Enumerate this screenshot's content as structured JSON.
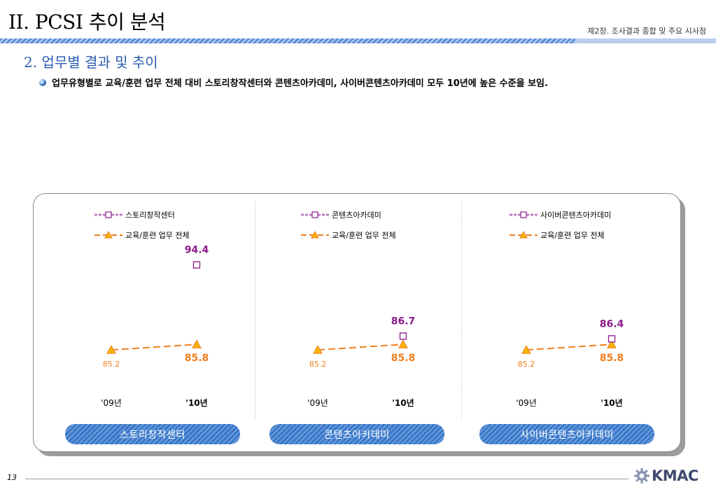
{
  "header": {
    "title": "II. PCSI 추이 분석",
    "chapter": "제2장. 조사결과 종합 및 주요 시사점"
  },
  "section": {
    "title": "2. 업무별 결과 및 추이",
    "bullet": "업무유형별로 교육/훈련 업무 전체 대비 스토리창작센터와 콘텐츠아카데미, 사이버콘텐츠아카데미 모두 10년에 높은 수준을 보임."
  },
  "colors": {
    "series_unit": "#8b1a8b",
    "series_total": "#f07f1e",
    "triangle_fill": "#f5b400",
    "pill": "#3a77c8"
  },
  "chart_data": [
    {
      "type": "line",
      "panel_label": "스토리창작센터",
      "x": [
        "'09년",
        "'10년"
      ],
      "series": [
        {
          "name": "스토리창작센터",
          "marker": "square",
          "values": [
            null,
            94.4
          ],
          "labels": [
            "",
            "94.4"
          ]
        },
        {
          "name": "교육/훈련 업무 전체",
          "marker": "triangle",
          "values": [
            85.2,
            85.8
          ],
          "labels": [
            "85.2",
            "85.8"
          ]
        }
      ]
    },
    {
      "type": "line",
      "panel_label": "콘텐츠아카데미",
      "x": [
        "'09년",
        "'10년"
      ],
      "series": [
        {
          "name": "콘텐츠아카데미",
          "marker": "square",
          "values": [
            null,
            86.7
          ],
          "labels": [
            "",
            "86.7"
          ]
        },
        {
          "name": "교육/훈련 업무 전체",
          "marker": "triangle",
          "values": [
            85.2,
            85.8
          ],
          "labels": [
            "85.2",
            "85.8"
          ]
        }
      ]
    },
    {
      "type": "line",
      "panel_label": "사이버콘텐츠아카데미",
      "x": [
        "'09년",
        "'10년"
      ],
      "series": [
        {
          "name": "사이버콘텐츠아카데미",
          "marker": "square",
          "values": [
            null,
            86.4
          ],
          "labels": [
            "",
            "86.4"
          ]
        },
        {
          "name": "교육/훈련 업무 전체",
          "marker": "triangle",
          "values": [
            85.2,
            85.8
          ],
          "labels": [
            "85.2",
            "85.8"
          ]
        }
      ]
    }
  ],
  "footer": {
    "page_number": "13",
    "logo_text": "KMAC"
  }
}
